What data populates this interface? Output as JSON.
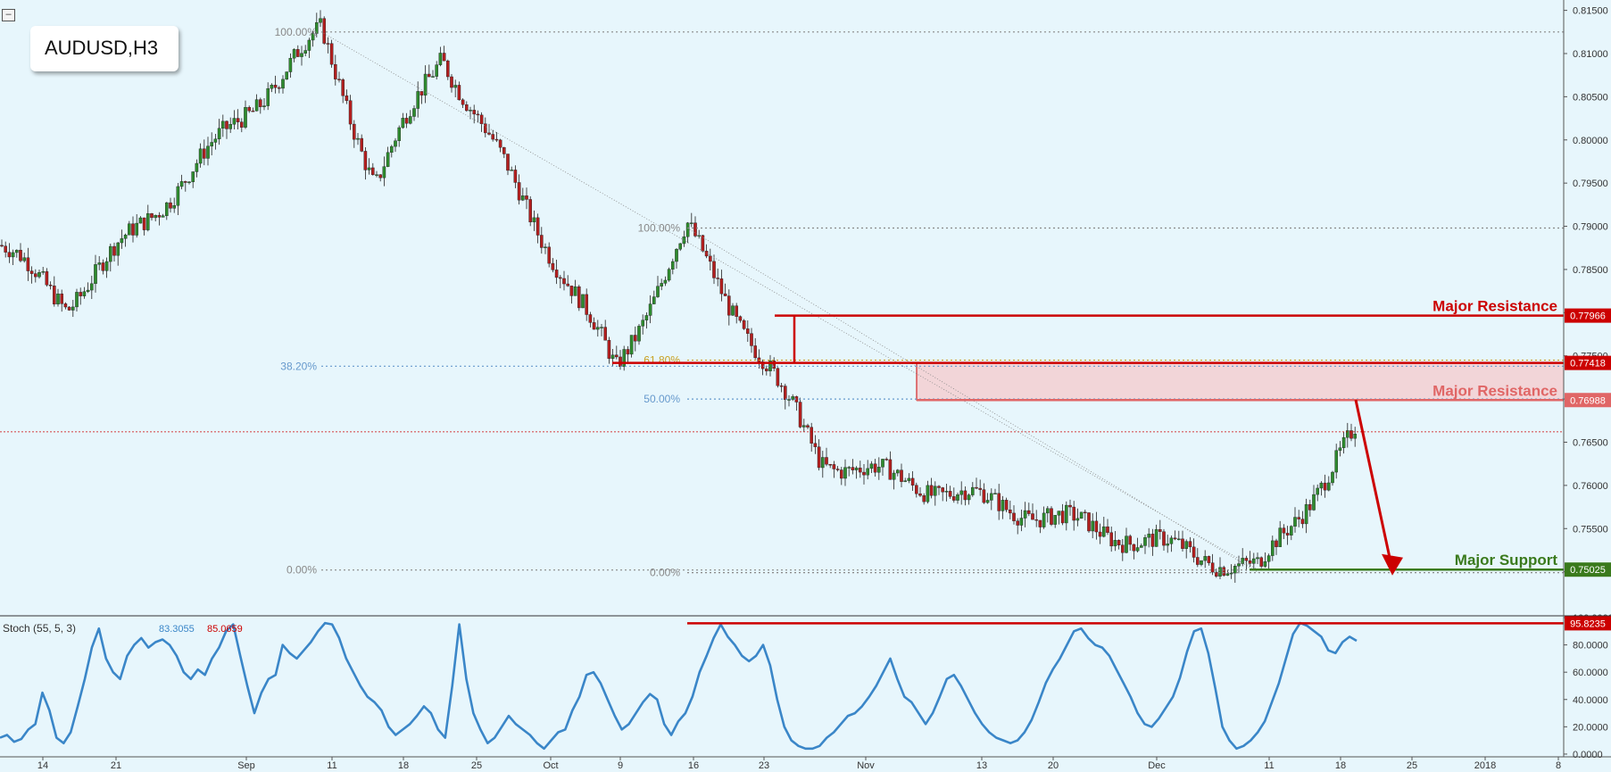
{
  "symbol": "AUDUSD,H3",
  "colors": {
    "background": "#e7f6fc",
    "bull": "#2e8b2e",
    "bear": "#b21f1f",
    "resistance": "#cc0000",
    "resistance_zone": "#f2d5d8",
    "support": "#3a7a1c",
    "stoch": "#3a86c8",
    "fib_grey": "#888888",
    "fib_blue": "#6699cc"
  },
  "chart_data": [
    {
      "type": "candlestick",
      "symbol": "AUDUSD",
      "timeframe": "H3",
      "ylim": [
        0.7449,
        0.8162
      ],
      "y_ticks": [
        "0.81500",
        "0.81000",
        "0.80500",
        "0.80000",
        "0.79500",
        "0.79000",
        "0.78500",
        "0.78000",
        "0.77500",
        "0.77000",
        "0.76500",
        "0.76000",
        "0.75500",
        "0.75000"
      ],
      "x_ticks": [
        "14",
        "21",
        "Sep",
        "11",
        "18",
        "25",
        "Oct",
        "9",
        "16",
        "23",
        "Nov",
        "13",
        "20",
        "Dec",
        "11",
        "18",
        "25",
        "2018",
        "8"
      ],
      "current_price": 0.7662,
      "price_path_approx": [
        {
          "label": "start",
          "price": 0.7878
        },
        {
          "label": "swing low (14-21)",
          "price": 0.781
        },
        {
          "label": "swing high (Sep 11)",
          "price": 0.8125
        },
        {
          "label": "pullback",
          "price": 0.795
        },
        {
          "label": "swing high (Sep 18-25)",
          "price": 0.81
        },
        {
          "label": "swing low (Oct 9)",
          "price": 0.7735
        },
        {
          "label": "swing high (Oct 16)",
          "price": 0.7896
        },
        {
          "label": "swing low (late Oct)",
          "price": 0.763
        },
        {
          "label": "swing low (Dec 8)",
          "price": 0.7502
        },
        {
          "label": "latest",
          "price": 0.7662
        }
      ],
      "levels": [
        {
          "label": "Major Resistance",
          "value": 0.77966,
          "value_text": "0.77966",
          "color": "#cc0000"
        },
        {
          "label": "",
          "value": 0.77418,
          "value_text": "0.77418",
          "color": "#cc0000"
        },
        {
          "label": "Major Resistance",
          "value": 0.76988,
          "value_text": "0.76988",
          "color": "#e06666"
        },
        {
          "label": "Major Support",
          "value": 0.75025,
          "value_text": "0.75025",
          "color": "#3a7a1c"
        }
      ],
      "resistance_zone": [
        0.76988,
        0.77418
      ],
      "fibonacci": [
        {
          "set": "A",
          "label": "100.00%",
          "price": 0.8125
        },
        {
          "set": "A",
          "label": "38.20%",
          "price": 0.7738
        },
        {
          "set": "A",
          "label": "0.00%",
          "price": 0.7502
        },
        {
          "set": "B",
          "label": "100.00%",
          "price": 0.7898
        },
        {
          "set": "B",
          "label": "61.80%",
          "price": 0.7745
        },
        {
          "set": "B",
          "label": "50.00%",
          "price": 0.77
        },
        {
          "set": "B",
          "label": "0.00%",
          "price": 0.7499
        }
      ],
      "projection": {
        "from": 0.7699,
        "to": 0.7502,
        "direction": "down"
      }
    },
    {
      "type": "line",
      "title": "Stoch (55, 5, 3)",
      "values_text": [
        "83.3055",
        "85.0659"
      ],
      "ylim": [
        -2,
        100
      ],
      "y_ticks": [
        "100.0000",
        "80.0000",
        "60.0000",
        "40.0000",
        "20.0000",
        "0.0000"
      ],
      "level": {
        "value": 95.8235,
        "value_text": "95.8235"
      },
      "series": [
        {
          "values": [
            12,
            14,
            9,
            11,
            18,
            22,
            45,
            32,
            12,
            8,
            16,
            35,
            55,
            78,
            92,
            70,
            60,
            55,
            72,
            80,
            85,
            78,
            82,
            84,
            80,
            72,
            60,
            55,
            62,
            58,
            70,
            78,
            90,
            95,
            72,
            50,
            30,
            45,
            55,
            58,
            80,
            74,
            70,
            76,
            82,
            90,
            96,
            95,
            85,
            70,
            60,
            50,
            42,
            38,
            32,
            20,
            14,
            18,
            22,
            28,
            35,
            30,
            18,
            12,
            50,
            95,
            55,
            30,
            18,
            8,
            12,
            20,
            28,
            22,
            18,
            14,
            8,
            4,
            10,
            16,
            18,
            32,
            42,
            58,
            60,
            52,
            40,
            28,
            18,
            22,
            30,
            38,
            44,
            40,
            22,
            14,
            24,
            30,
            42,
            60,
            72,
            85,
            95,
            86,
            80,
            72,
            68,
            72,
            80,
            65,
            40,
            20,
            10,
            6,
            4,
            4,
            6,
            12,
            16,
            22,
            28,
            30,
            35,
            42,
            50,
            60,
            70,
            55,
            42,
            38,
            30,
            22,
            30,
            42,
            55,
            58,
            50,
            40,
            30,
            22,
            16,
            12,
            10,
            8,
            10,
            16,
            25,
            38,
            52,
            62,
            70,
            80,
            90,
            92,
            85,
            80,
            78,
            72,
            62,
            52,
            42,
            30,
            22,
            20,
            26,
            34,
            42,
            56,
            75,
            90,
            92,
            74,
            48,
            20,
            10,
            4,
            6,
            10,
            16,
            24,
            38,
            52,
            70,
            88,
            96,
            94,
            90,
            86,
            76,
            74,
            82,
            86,
            83
          ]
        }
      ]
    }
  ]
}
